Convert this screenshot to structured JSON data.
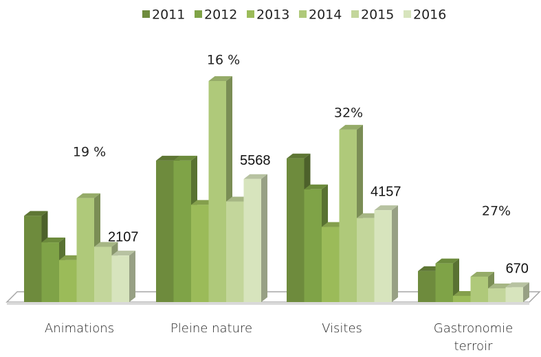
{
  "chart_data": {
    "type": "bar3d",
    "categories": [
      "Animations",
      "Pleine nature",
      "Visites",
      "Gastronomie terroir"
    ],
    "annotations": [
      "19 %",
      "16 %",
      "32%",
      "27%"
    ],
    "legend_position": "top",
    "series": [
      {
        "name": "2011",
        "color": "#6e8b3d",
        "values": [
          3900,
          6400,
          6500,
          1400
        ]
      },
      {
        "name": "2012",
        "color": "#7fa347",
        "values": [
          2700,
          6400,
          5100,
          1750
        ]
      },
      {
        "name": "2013",
        "color": "#9bbb59",
        "values": [
          1900,
          4400,
          3400,
          280
        ]
      },
      {
        "name": "2014",
        "color": "#afc97a",
        "values": [
          4700,
          10000,
          7800,
          1150
        ]
      },
      {
        "name": "2015",
        "color": "#c3d69b",
        "values": [
          2500,
          4550,
          3800,
          620
        ]
      },
      {
        "name": "2016",
        "color": "#d7e4bd",
        "values": [
          2107,
          5568,
          4157,
          670
        ],
        "data_labels": true
      }
    ]
  }
}
